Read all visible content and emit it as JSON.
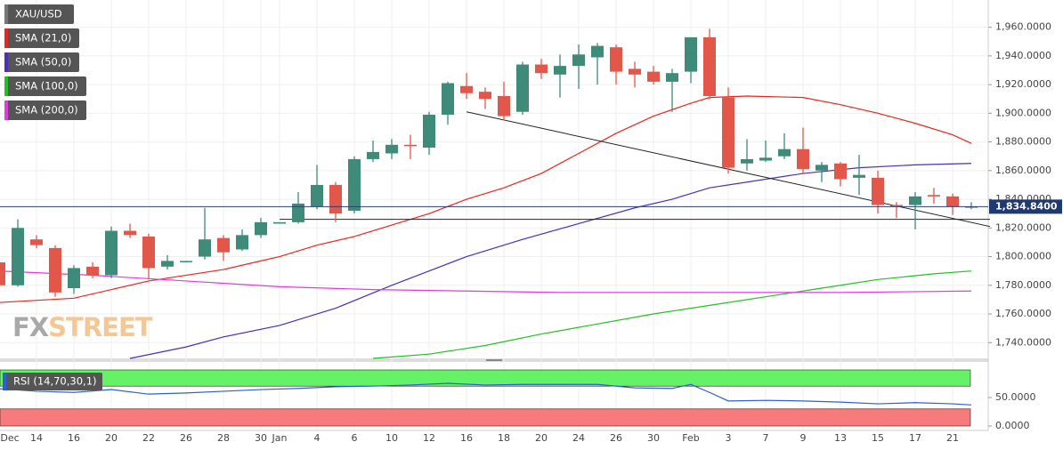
{
  "chart_data": [
    {
      "type": "candlestick",
      "title": "XAU/USD",
      "categories": [
        "Dec",
        null,
        "14",
        null,
        "16",
        null,
        "20",
        null,
        "22",
        null,
        "26",
        null,
        "28",
        null,
        "30",
        "Jan",
        null,
        "4",
        null,
        "6",
        null,
        "10",
        null,
        "12",
        null,
        "16",
        null,
        "18",
        null,
        "20",
        null,
        "24",
        null,
        "26",
        null,
        "30",
        null,
        "Feb",
        null,
        "3",
        null,
        "7",
        null,
        "9",
        null,
        "13",
        null,
        "15",
        null,
        "17",
        null,
        "21",
        null
      ],
      "open": [
        1796,
        1780,
        1812,
        1806,
        1778,
        1793,
        1787,
        1818,
        1814,
        1793,
        1797,
        1800,
        1813,
        1805,
        1815,
        1823,
        1824,
        1835,
        1850,
        1832,
        1868,
        1872,
        1878,
        1876,
        1899,
        1919,
        1915,
        1912,
        1901,
        1934,
        1927,
        1933,
        1939,
        1946,
        1931,
        1929,
        1922,
        1929,
        1953,
        1911,
        1865,
        1867,
        1870,
        1875,
        1860,
        1865,
        1855,
        1855,
        1836,
        1836,
        1843,
        1842,
        1835
      ],
      "high": [
        1800,
        1826,
        1815,
        1808,
        1794,
        1796,
        1821,
        1823,
        1816,
        1801,
        1797,
        1834,
        1815,
        1819,
        1827,
        1824,
        1845,
        1864,
        1852,
        1870,
        1881,
        1882,
        1885,
        1901,
        1922,
        1928,
        1918,
        1922,
        1936,
        1938,
        1941,
        1948,
        1949,
        1948,
        1936,
        1933,
        1931,
        1953,
        1959,
        1918,
        1882,
        1881,
        1886,
        1890,
        1866,
        1866,
        1871,
        1860,
        1838,
        1845,
        1848,
        1844,
        1838
      ],
      "low": [
        1778,
        1779,
        1806,
        1772,
        1774,
        1785,
        1785,
        1813,
        1784,
        1791,
        1796,
        1798,
        1797,
        1804,
        1813,
        1823,
        1823,
        1833,
        1824,
        1830,
        1866,
        1868,
        1868,
        1871,
        1892,
        1910,
        1903,
        1895,
        1899,
        1924,
        1911,
        1917,
        1920,
        1920,
        1918,
        1920,
        1901,
        1921,
        1910,
        1858,
        1860,
        1866,
        1868,
        1858,
        1852,
        1849,
        1843,
        1830,
        1827,
        1819,
        1837,
        1829,
        1833
      ],
      "close": [
        1780,
        1820,
        1808,
        1775,
        1792,
        1787,
        1818,
        1815,
        1792,
        1797,
        1797,
        1812,
        1803,
        1815,
        1824,
        1824,
        1837,
        1850,
        1830,
        1868,
        1873,
        1878,
        1877,
        1899,
        1921,
        1914,
        1910,
        1898,
        1934,
        1928,
        1933,
        1941,
        1947,
        1929,
        1927,
        1922,
        1928,
        1953,
        1912,
        1862,
        1868,
        1869,
        1875,
        1861,
        1864,
        1854,
        1857,
        1836,
        1835,
        1842,
        1842,
        1835,
        1835
      ],
      "up_color": "#3d8b78",
      "down_color": "#e3564a",
      "indicators": [
        {
          "name": "SMA (21,0)",
          "color": "#e8261f",
          "x": [
            0,
            4,
            8,
            12,
            14,
            15,
            17,
            19,
            21,
            23,
            25,
            27,
            29,
            31,
            33,
            35,
            37,
            38,
            40,
            43,
            45,
            47,
            49,
            51,
            52
          ],
          "values": [
            1768,
            1771,
            1783,
            1791,
            1797,
            1800,
            1808,
            1814,
            1822,
            1830,
            1840,
            1848,
            1858,
            1872,
            1886,
            1898,
            1907,
            1911,
            1912,
            1911,
            1906,
            1900,
            1893,
            1885,
            1879
          ]
        },
        {
          "name": "SMA (50,0)",
          "color": "#4b2fbf",
          "x": [
            7,
            10,
            12,
            15,
            18,
            21,
            23,
            25,
            28,
            31,
            34,
            36,
            38,
            40,
            43,
            46,
            49,
            52
          ],
          "values": [
            1729,
            1737,
            1744,
            1752,
            1764,
            1780,
            1790,
            1800,
            1812,
            1823,
            1834,
            1840,
            1848,
            1852,
            1858,
            1862,
            1864,
            1865
          ]
        },
        {
          "name": "SMA (100,0)",
          "color": "#22c022",
          "x": [
            20,
            23,
            26,
            29,
            32,
            35,
            38,
            41,
            44,
            47,
            50,
            52
          ],
          "values": [
            1729,
            1732,
            1738,
            1746,
            1753,
            1760,
            1766,
            1772,
            1778,
            1784,
            1788,
            1790
          ]
        },
        {
          "name": "SMA (200,0)",
          "color": "#e03ce0",
          "x": [
            0,
            5,
            10,
            15,
            20,
            25,
            30,
            35,
            40,
            45,
            52
          ],
          "values": [
            1790,
            1787,
            1783,
            1779,
            1777,
            1776,
            1775,
            1775,
            1775,
            1775,
            1776
          ]
        }
      ],
      "lines": [
        {
          "x": [
            25,
            53
          ],
          "values": [
            1901,
            1821
          ]
        },
        {
          "x": [
            15,
            53
          ],
          "values": [
            1826,
            1826
          ]
        }
      ],
      "last_price": {
        "value": 1834.84,
        "label": "1,834.8400"
      },
      "ylim": [
        1729,
        1979
      ],
      "yticks": [
        {
          "value": 1740,
          "label": "1,740.0000"
        },
        {
          "value": 1760,
          "label": "1,760.0000"
        },
        {
          "value": 1780,
          "label": "1,780.0000"
        },
        {
          "value": 1800,
          "label": "1,800.0000"
        },
        {
          "value": 1820,
          "label": "1,820.0000"
        },
        {
          "value": 1840,
          "label": "1,840.0000"
        },
        {
          "value": 1860,
          "label": "1,860.0000"
        },
        {
          "value": 1880,
          "label": "1,880.0000"
        },
        {
          "value": 1900,
          "label": "1,900.0000"
        },
        {
          "value": 1920,
          "label": "1,920.0000"
        },
        {
          "value": 1940,
          "label": "1,940.0000"
        },
        {
          "value": 1960,
          "label": "1,960.0000"
        }
      ],
      "grid": true,
      "watermark": [
        "FX",
        "STREET"
      ]
    },
    {
      "type": "line",
      "title": "RSI (14,70,30,1)",
      "color": "#2d5fd6",
      "x": [
        0,
        2,
        4,
        6,
        8,
        10,
        12,
        14,
        16,
        18,
        20,
        22,
        24,
        26,
        28,
        30,
        32,
        34,
        36,
        37,
        38,
        39,
        41,
        43,
        45,
        47,
        49,
        51,
        52
      ],
      "values": [
        65.6,
        61,
        59,
        64,
        56,
        58,
        61,
        64,
        66,
        69,
        70,
        72,
        75,
        72,
        73,
        73,
        73,
        67,
        66,
        73,
        59,
        44,
        45,
        44,
        42,
        39,
        41,
        39,
        37
      ],
      "overbought": 70,
      "oversold": 30,
      "ylim": [
        0,
        100
      ],
      "yticks": [
        {
          "value": 0,
          "label": "0.0000"
        },
        {
          "value": 50,
          "label": "50.0000"
        }
      ]
    }
  ]
}
